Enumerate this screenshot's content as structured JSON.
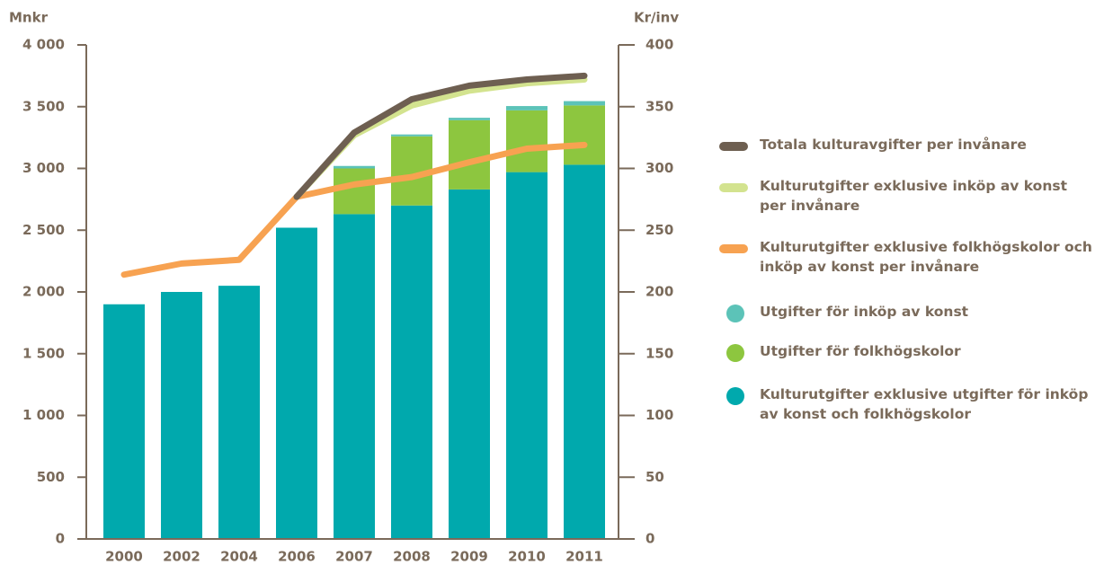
{
  "chart_data": {
    "type": "bar",
    "y_label": "Mnkr",
    "y2_label": "Kr/inv",
    "categories": [
      "2000",
      "2002",
      "2004",
      "2006",
      "2007",
      "2008",
      "2009",
      "2010",
      "2011"
    ],
    "series": [
      {
        "name": "Kulturutgifter exklusive utgifter för inköp av konst och folkhögskolor",
        "color": "#00a9ad",
        "kind": "bar",
        "values": [
          1900,
          2000,
          2050,
          2520,
          2630,
          2700,
          2830,
          2970,
          3030
        ]
      },
      {
        "name": "Utgifter för folkhögskolor",
        "color": "#8dc63f",
        "kind": "bar",
        "values": [
          null,
          null,
          null,
          null,
          370,
          560,
          560,
          500,
          480
        ]
      },
      {
        "name": "Utgifter för inköp av konst",
        "color": "#5cc3b8",
        "kind": "bar",
        "values": [
          null,
          null,
          null,
          null,
          20,
          15,
          20,
          35,
          35
        ]
      },
      {
        "name": "Kulturutgifter exklusive folkhögskolor och inköp av konst per invånare",
        "color": "#f7a251",
        "kind": "line",
        "axis": "y2",
        "values": [
          214,
          223,
          226,
          277,
          287,
          293,
          305,
          316,
          319
        ]
      },
      {
        "name": "Kulturutgifter exklusive inköp av konst per invånare",
        "color": "#d3e38f",
        "kind": "line",
        "axis": "y2",
        "values": [
          null,
          null,
          null,
          277,
          327,
          351,
          363,
          369,
          372
        ]
      },
      {
        "name": "Totala kulturavgifter per invånare",
        "color": "#6e5f51",
        "kind": "line",
        "axis": "y2",
        "values": [
          null,
          null,
          null,
          277,
          329,
          356,
          367,
          372,
          375
        ]
      }
    ],
    "legend_order": [
      5,
      4,
      3,
      2,
      1,
      0
    ],
    "ylim": [
      0,
      4000
    ],
    "yticks": [
      0,
      500,
      {
        "value": 1000,
        "label": "1 000"
      },
      {
        "value": 1500,
        "label": "1 500"
      },
      {
        "value": 2000,
        "label": "2 000"
      },
      {
        "value": 2500,
        "label": "2 500"
      },
      {
        "value": 3000,
        "label": "3 000"
      },
      {
        "value": 3500,
        "label": "3 500"
      },
      {
        "value": 4000,
        "label": "4 000"
      }
    ],
    "y2lim": [
      0,
      400
    ],
    "y2ticks": [
      0,
      50,
      100,
      150,
      200,
      250,
      300,
      350,
      400
    ]
  }
}
